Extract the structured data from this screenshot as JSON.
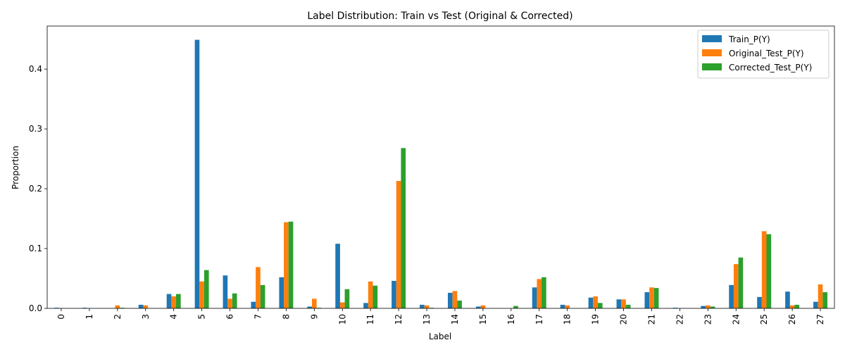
{
  "chart_data": {
    "type": "bar",
    "title": "Label Distribution: Train vs Test (Original & Corrected)",
    "xlabel": "Label",
    "ylabel": "Proportion",
    "ylim": [
      0,
      0.472
    ],
    "yticks": [
      "0.0",
      "0.1",
      "0.2",
      "0.3",
      "0.4"
    ],
    "ytick_values": [
      0.0,
      0.1,
      0.2,
      0.3,
      0.4
    ],
    "categories": [
      "0",
      "1",
      "2",
      "3",
      "4",
      "5",
      "6",
      "7",
      "8",
      "9",
      "10",
      "11",
      "12",
      "13",
      "14",
      "15",
      "16",
      "17",
      "18",
      "19",
      "20",
      "21",
      "22",
      "23",
      "24",
      "25",
      "26",
      "27"
    ],
    "legend_position": "upper right",
    "grid": false,
    "series": [
      {
        "name": "Train_P(Y)",
        "color": "#1f77b4",
        "values": [
          0.001,
          0.001,
          0.0,
          0.006,
          0.024,
          0.449,
          0.055,
          0.011,
          0.052,
          0.003,
          0.108,
          0.009,
          0.046,
          0.006,
          0.026,
          0.003,
          0.0,
          0.035,
          0.006,
          0.018,
          0.015,
          0.027,
          0.001,
          0.004,
          0.039,
          0.019,
          0.028,
          0.011
        ]
      },
      {
        "name": "Original_Test_P(Y)",
        "color": "#ff7f0e",
        "values": [
          0.0,
          0.0,
          0.005,
          0.005,
          0.02,
          0.045,
          0.016,
          0.069,
          0.144,
          0.016,
          0.01,
          0.045,
          0.213,
          0.005,
          0.029,
          0.005,
          0.0,
          0.049,
          0.005,
          0.02,
          0.015,
          0.035,
          0.0,
          0.005,
          0.074,
          0.129,
          0.005,
          0.04
        ]
      },
      {
        "name": "Corrected_Test_P(Y)",
        "color": "#2ca02c",
        "values": [
          0.0,
          0.0,
          0.001,
          0.0,
          0.024,
          0.064,
          0.025,
          0.039,
          0.145,
          0.001,
          0.032,
          0.038,
          0.268,
          0.001,
          0.013,
          0.0,
          0.004,
          0.052,
          0.0,
          0.009,
          0.006,
          0.034,
          0.0,
          0.003,
          0.085,
          0.124,
          0.006,
          0.027
        ]
      }
    ]
  }
}
